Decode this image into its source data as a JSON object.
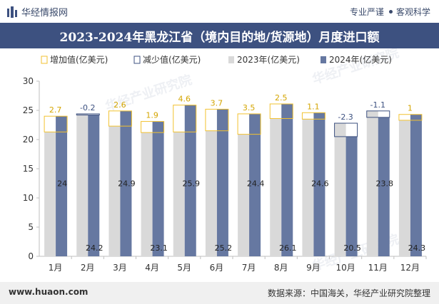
{
  "header": {
    "brand_name": "华经情报网",
    "tag1": "专业严谨",
    "tag2": "客观科学",
    "title": "2023-2024年黑龙江省（境内目的地/货源地）月度进口额"
  },
  "footer": {
    "website": "www.huaon.com",
    "source": "数据来源：中国海关，华经产业研究院整理"
  },
  "watermark": "华经产业研究院",
  "colors": {
    "series_2023": "#d9d9d9",
    "series_2024": "#6678a1",
    "increase_outline": "#f2c230",
    "decrease_outline": "#3d5180",
    "increase_label": "#d4a500",
    "decrease_label": "#3d5180",
    "header_bg": "#3d5180"
  },
  "chart_data": {
    "type": "bar",
    "categories": [
      "1月",
      "2月",
      "3月",
      "4月",
      "5月",
      "6月",
      "7月",
      "8月",
      "9月",
      "10月",
      "11月",
      "12月"
    ],
    "series": [
      {
        "name": "2023年(亿美元)",
        "values": [
          21.3,
          24.4,
          22.3,
          21.2,
          21.3,
          21.5,
          20.9,
          23.6,
          23.5,
          22.8,
          24.9,
          23.3
        ]
      },
      {
        "name": "2024年(亿美元)",
        "values": [
          24,
          24.2,
          24.9,
          23.1,
          25.9,
          25.2,
          24.4,
          26.1,
          24.6,
          20.5,
          23.8,
          24.3
        ]
      }
    ],
    "change": {
      "increase_name": "增加值(亿美元)",
      "decrease_name": "减少值(亿美元)",
      "labels": [
        "2.7",
        "-0.2",
        "2.6",
        "1.9",
        "4.6",
        "3.7",
        "3.5",
        "2.5",
        "1.1",
        "-2.3",
        "-1.1",
        "1"
      ]
    },
    "ylim": [
      0,
      30
    ],
    "yticks": [
      0,
      5,
      10,
      15,
      20,
      25,
      30
    ],
    "legend_position": "top",
    "grid": false
  }
}
